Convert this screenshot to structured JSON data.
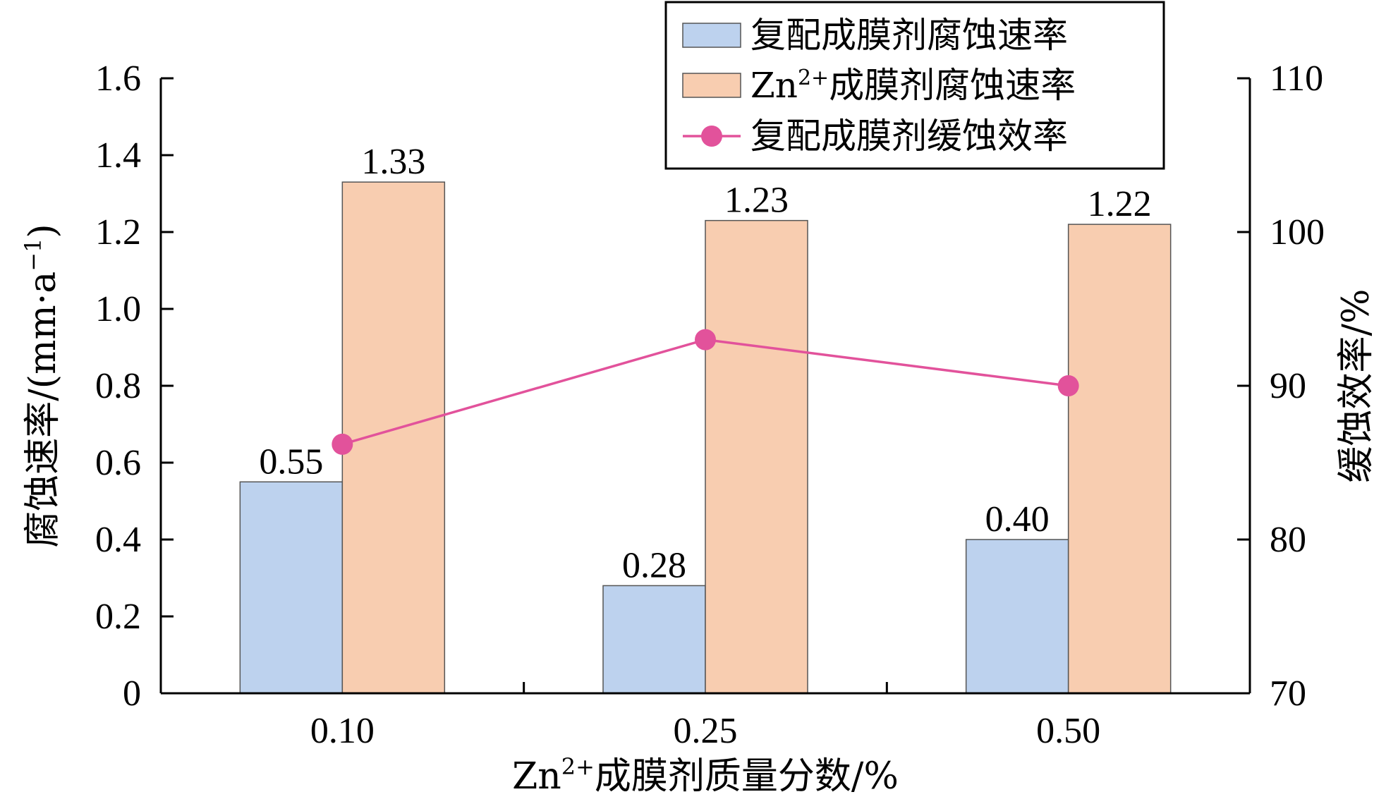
{
  "chart_data": {
    "type": "bar",
    "categories": [
      "0.10",
      "0.25",
      "0.50"
    ],
    "series": [
      {
        "name": "复配成膜剂腐蚀速率",
        "kind": "bar",
        "axis": "left",
        "values": [
          0.55,
          0.28,
          0.4
        ],
        "labels": [
          "0.55",
          "0.28",
          "0.40"
        ],
        "color": "#bdd2ee"
      },
      {
        "name_prefix": "Zn",
        "name_sup": "2+",
        "name_suffix": "成膜剂腐蚀速率",
        "kind": "bar",
        "axis": "left",
        "values": [
          1.33,
          1.23,
          1.22
        ],
        "labels": [
          "1.33",
          "1.23",
          "1.22"
        ],
        "color": "#f8cdb0"
      },
      {
        "name": "复配成膜剂缓蚀效率",
        "kind": "line",
        "axis": "right",
        "values": [
          86.2,
          93.0,
          90.0
        ],
        "color": "#e2529b"
      }
    ],
    "xlabel": {
      "prefix": "Zn",
      "sup": "2+",
      "suffix": "成膜剂质量分数/%"
    },
    "ylabel_left": {
      "main": "腐蚀速率/(mm·a",
      "sup": "−1",
      "close": ")"
    },
    "ylabel_right": "缓蚀效率/%",
    "ylim_left": [
      0,
      1.6
    ],
    "yticks_left": [
      "0",
      "0.2",
      "0.4",
      "0.6",
      "0.8",
      "1.0",
      "1.2",
      "1.4",
      "1.6"
    ],
    "ylim_right": [
      70,
      110
    ],
    "yticks_right": [
      "70",
      "80",
      "90",
      "100",
      "110"
    ],
    "legend_position": "top-right",
    "grid": false
  }
}
